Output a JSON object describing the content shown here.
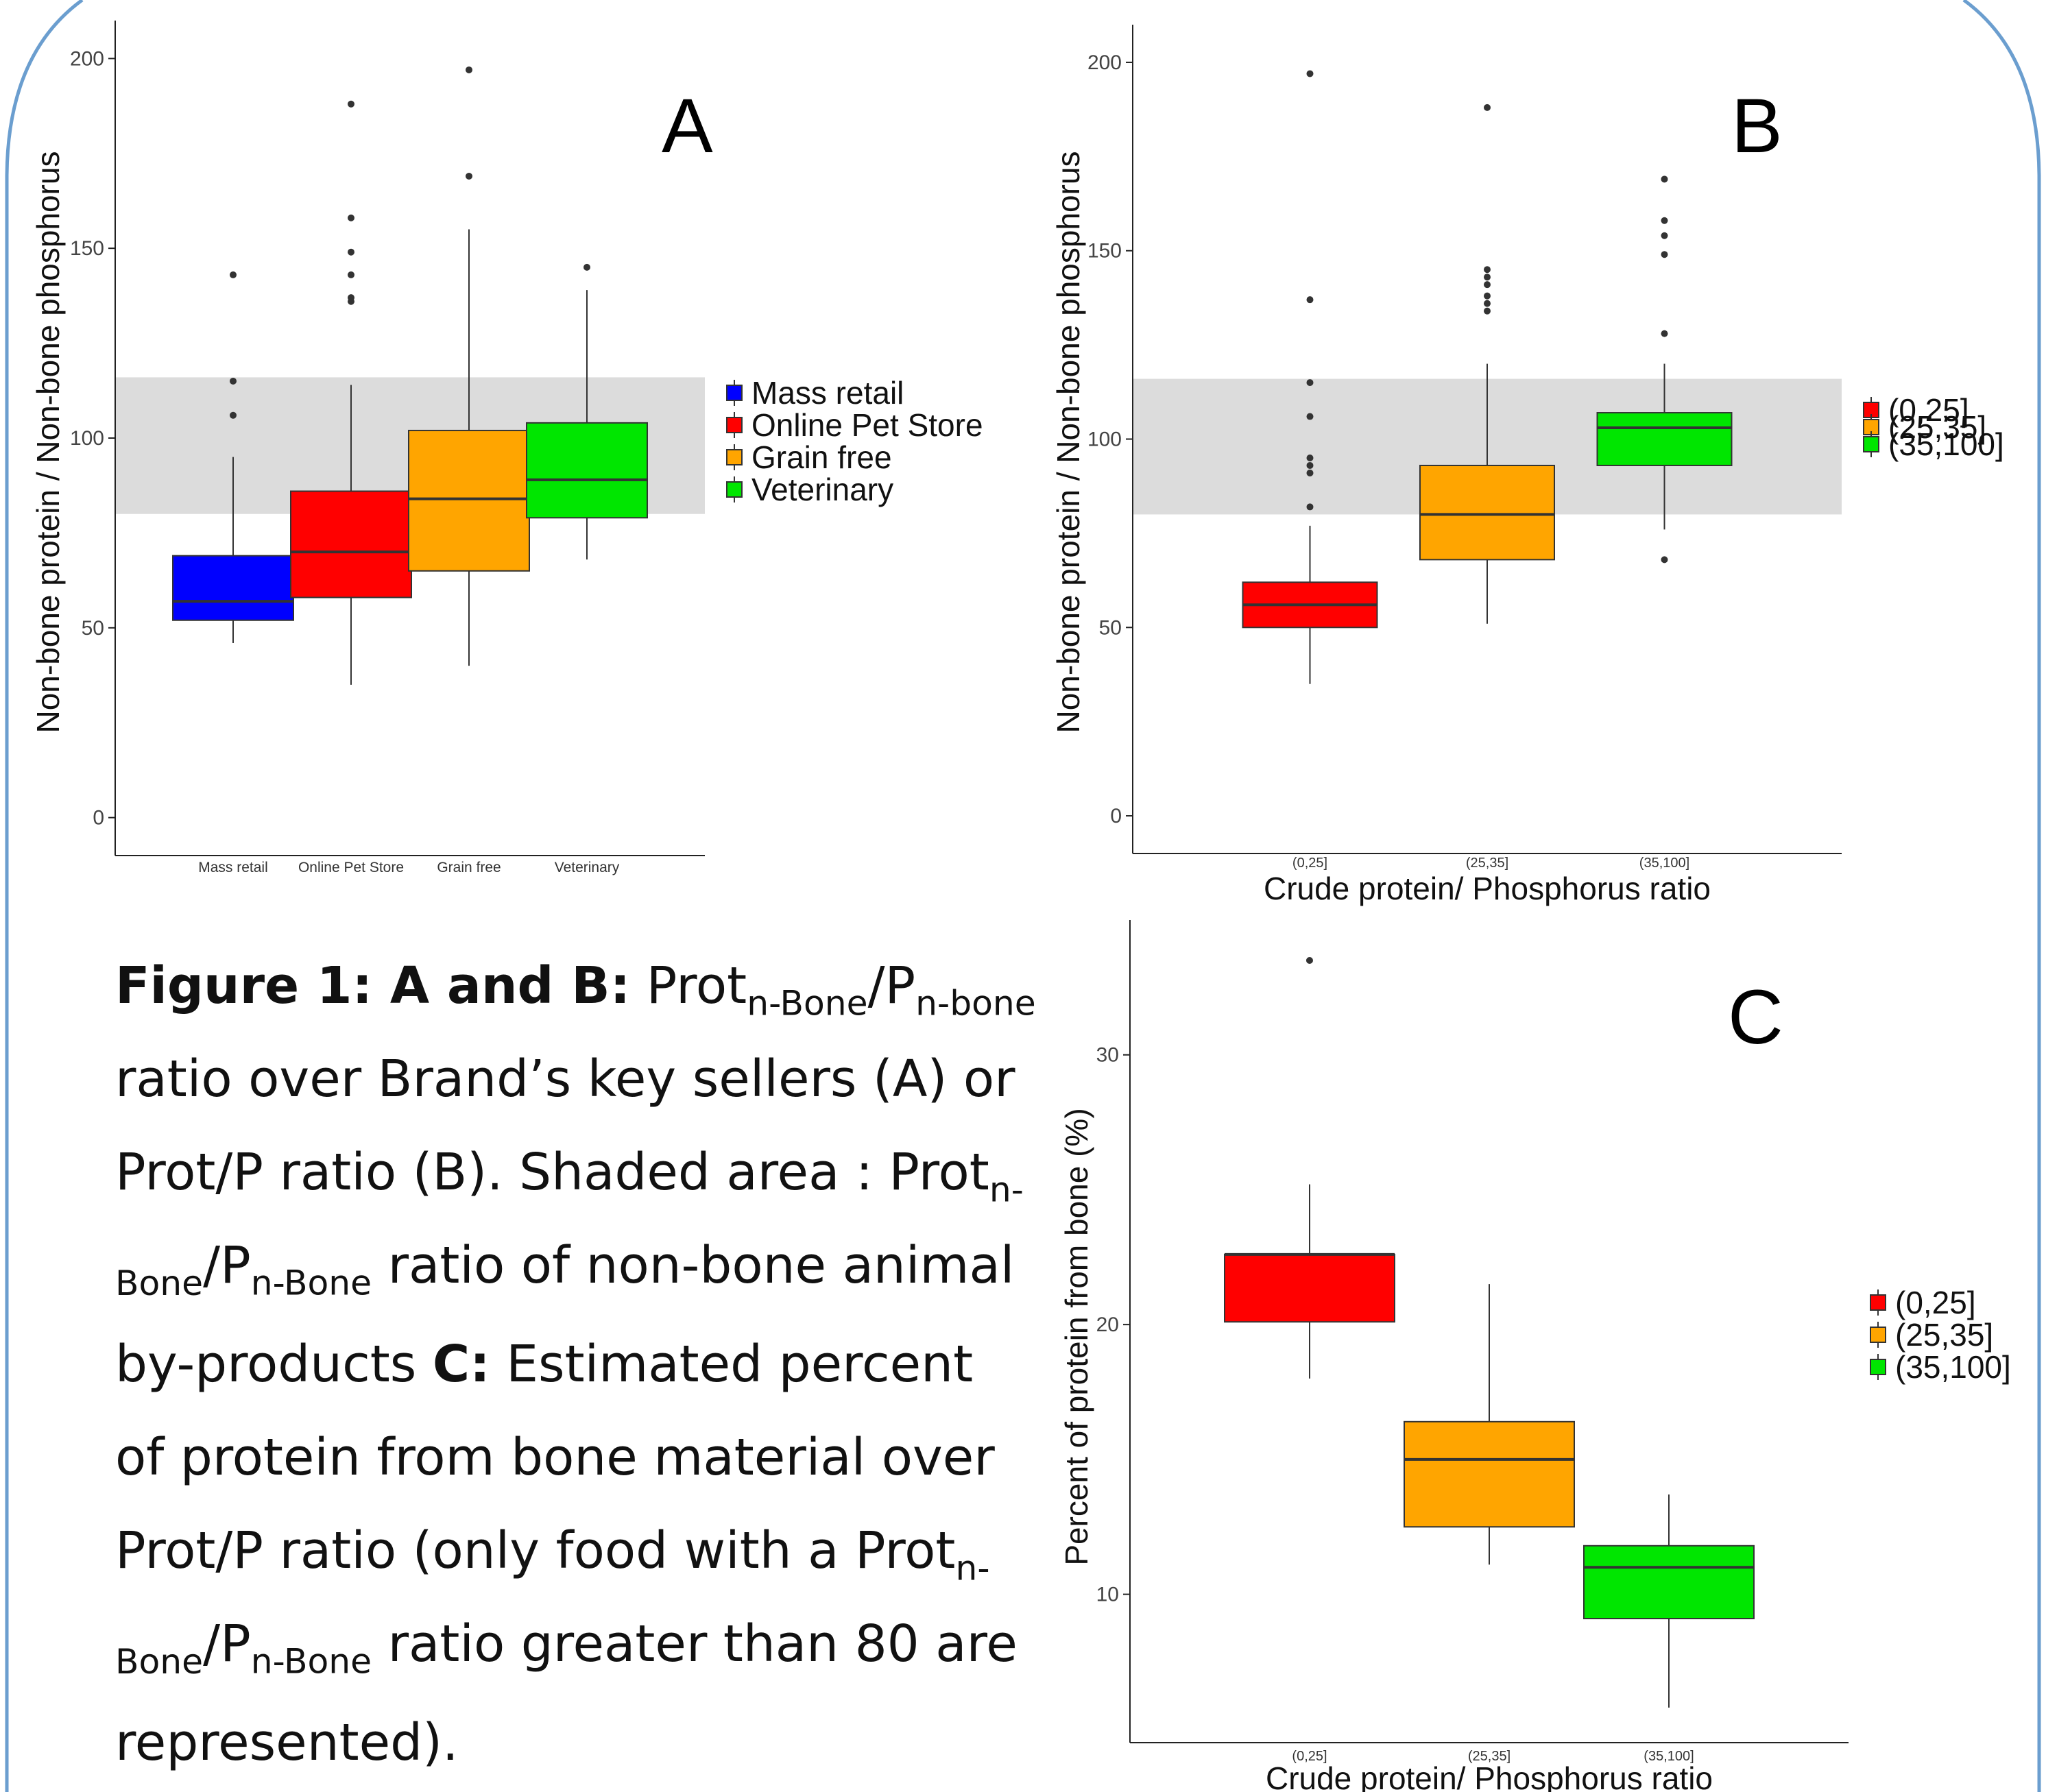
{
  "theme": {
    "border_color": "#6b9ecf",
    "band_color": "#dcdcdc",
    "box_stroke": "#333333"
  },
  "chart_data": [
    {
      "panel": "A",
      "type": "box",
      "ylabel": "Non-bone protein / Non-bone phosphorus",
      "xlabel": "",
      "ylim": [
        -10,
        210
      ],
      "yticks": [
        0,
        50,
        100,
        150,
        200
      ],
      "shaded_band": [
        80,
        116
      ],
      "categories": [
        "Mass retail",
        "Online Pet Store",
        "Grain free",
        "Veterinary"
      ],
      "colors": [
        "#0000ff",
        "#ff0000",
        "#ffa500",
        "#00e600"
      ],
      "boxes": [
        {
          "whisker_low": 46,
          "q1": 52,
          "median": 57,
          "q3": 69,
          "whisker_high": 95,
          "outliers": [
            106,
            115,
            143
          ]
        },
        {
          "whisker_low": 35,
          "q1": 58,
          "median": 70,
          "q3": 86,
          "whisker_high": 114,
          "outliers": [
            136,
            137,
            143,
            149,
            158,
            188
          ]
        },
        {
          "whisker_low": 40,
          "q1": 65,
          "median": 84,
          "q3": 102,
          "whisker_high": 155,
          "outliers": [
            169,
            197
          ]
        },
        {
          "whisker_low": 68,
          "q1": 79,
          "median": 89,
          "q3": 104,
          "whisker_high": 139,
          "outliers": [
            145
          ]
        }
      ],
      "legend": {
        "position": "right",
        "entries": [
          "Mass retail",
          "Online Pet Store",
          "Grain free",
          "Veterinary"
        ]
      }
    },
    {
      "panel": "B",
      "type": "box",
      "ylabel": "Non-bone protein / Non-bone phosphorus",
      "xlabel": "Crude protein/ Phosphorus ratio",
      "ylim": [
        -10,
        210
      ],
      "yticks": [
        0,
        50,
        100,
        150,
        200
      ],
      "shaded_band": [
        80,
        116
      ],
      "categories": [
        "(0,25]",
        "(25,35]",
        "(35,100]"
      ],
      "colors": [
        "#ff0000",
        "#ffa500",
        "#00e600"
      ],
      "boxes": [
        {
          "whisker_low": 35,
          "q1": 50,
          "median": 56,
          "q3": 62,
          "whisker_high": 77,
          "outliers": [
            82,
            91,
            93,
            95,
            106,
            115,
            137,
            197
          ]
        },
        {
          "whisker_low": 51,
          "q1": 68,
          "median": 80,
          "q3": 93,
          "whisker_high": 120,
          "outliers": [
            134,
            136,
            138,
            141,
            143,
            145,
            188
          ]
        },
        {
          "whisker_low": 76,
          "q1": 93,
          "median": 103,
          "q3": 107,
          "whisker_high": 120,
          "outliers": [
            68,
            128,
            149,
            154,
            158,
            169
          ]
        }
      ],
      "legend": {
        "position": "right",
        "entries": [
          "(0,25]",
          "(25,35]",
          "(35,100]"
        ]
      }
    },
    {
      "panel": "C",
      "type": "box",
      "ylabel": "Percent of protein from bone (%)",
      "xlabel": "Crude protein/ Phosphorus ratio",
      "ylim": [
        4.5,
        35
      ],
      "yticks": [
        10,
        20,
        30
      ],
      "categories": [
        "(0,25]",
        "(25,35]",
        "(35,100]"
      ],
      "colors": [
        "#ff0000",
        "#ffa500",
        "#00e600"
      ],
      "boxes": [
        {
          "whisker_low": 18,
          "q1": 20.1,
          "median": 22.6,
          "q3": 22.6,
          "whisker_high": 25.2,
          "outliers": [
            33.5
          ]
        },
        {
          "whisker_low": 11.1,
          "q1": 12.5,
          "median": 15,
          "q3": 16.4,
          "whisker_high": 21.5,
          "outliers": []
        },
        {
          "whisker_low": 5.8,
          "q1": 9.1,
          "median": 11,
          "q3": 11.8,
          "whisker_high": 13.7,
          "outliers": []
        }
      ],
      "legend": {
        "position": "right",
        "entries": [
          "(0,25]",
          "(25,35]",
          "(35,100]"
        ]
      }
    }
  ],
  "caption": {
    "figure_label": "Figure 1",
    "colon": ": ",
    "ab_label": "A and B:",
    "prot": " Prot",
    "nbone_lower": "n-Bone",
    "slash_p": "/P",
    "nbone_lower2": "n-bone",
    "line2": "ratio over Brand’s key sellers (A) or",
    "line3_a": "Prot/P ratio (B). Shaded area : Prot",
    "sub_n": "n-",
    "sub_bone": "Bone",
    "slash_p2": "/P",
    "sub_nbone": "n-Bone",
    "line4_rest": " ratio of non-bone animal",
    "line5_a": "by-products  ",
    "c_label": "C:",
    "line5_b": " Estimated percent",
    "line6": "of protein from bone material over",
    "line7_a": "Prot/P ratio (only food with a Prot",
    "line8_rest": " ratio greater than 80 are",
    "line9": "represented)."
  }
}
